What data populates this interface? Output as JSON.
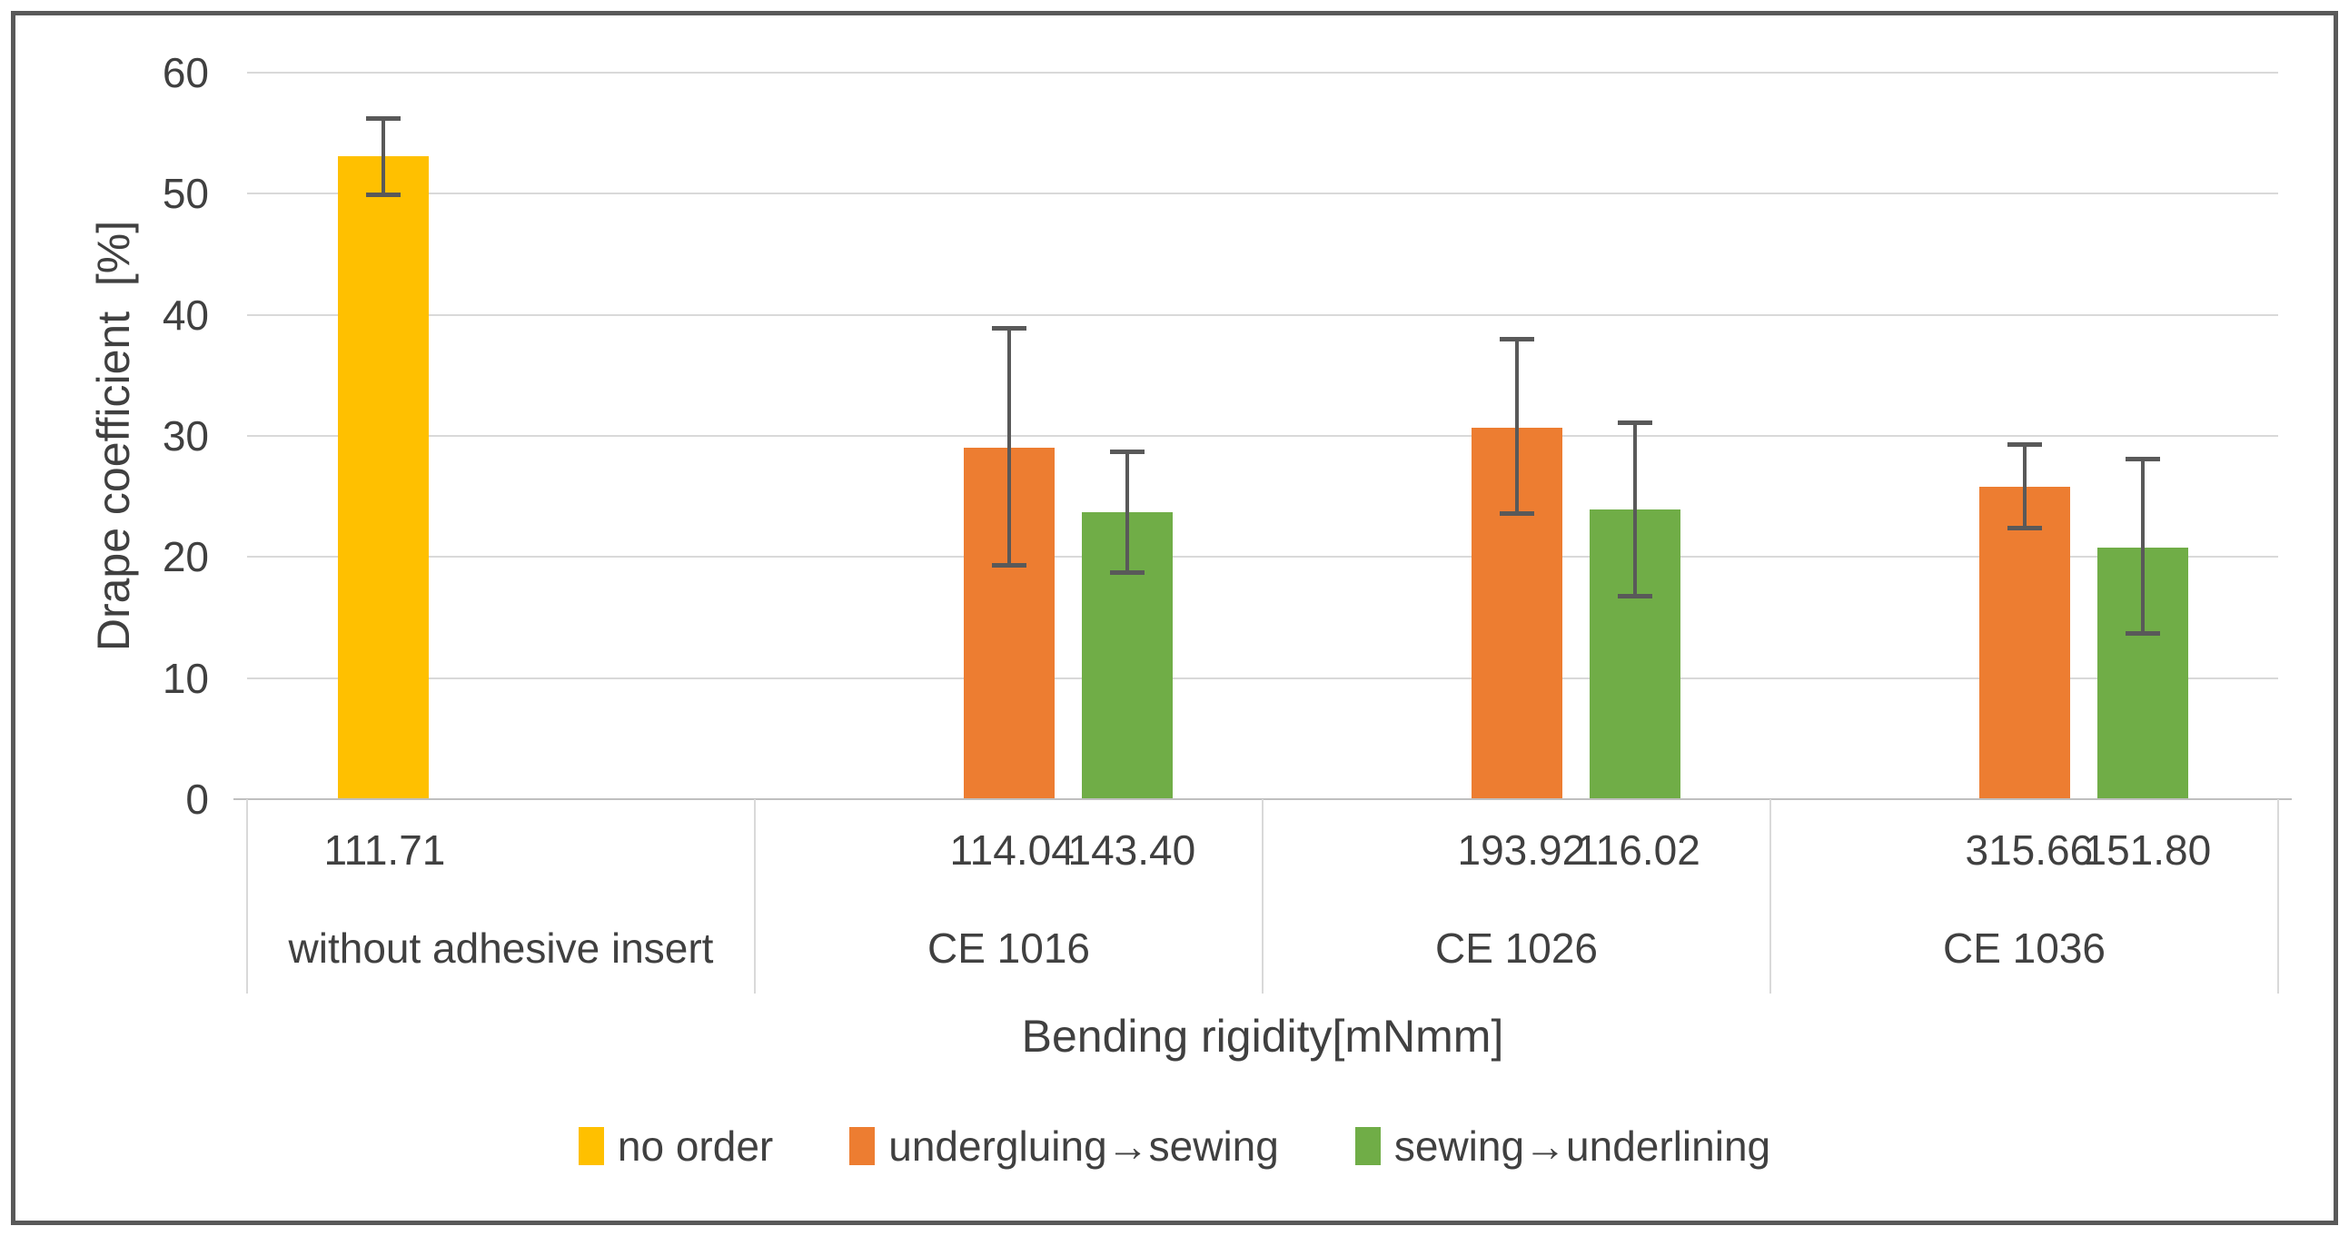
{
  "chart_data": {
    "type": "bar",
    "title": "",
    "xlabel": "Bending rigidity[mNmm]",
    "ylabel": "Drape coefficient  [%]",
    "ylim": [
      0,
      60
    ],
    "yticks": [
      60,
      50,
      40,
      30,
      20,
      10,
      0
    ],
    "grid": "horizontal",
    "legend_position": "bottom",
    "categories": [
      "without adhesive insert",
      "CE 1016",
      "CE 1026",
      "CE 1036"
    ],
    "series": [
      {
        "name": "no order",
        "color": "#FFC000",
        "values": [
          53.1,
          null,
          null,
          null
        ],
        "error_low": [
          49.7,
          null,
          null,
          null
        ],
        "error_high": [
          56.4,
          null,
          null,
          null
        ]
      },
      {
        "name": "undergluing→sewing",
        "color": "#ED7D31",
        "values": [
          null,
          29.0,
          30.7,
          25.8
        ],
        "error_low": [
          null,
          19.1,
          23.4,
          22.2
        ],
        "error_high": [
          null,
          39.1,
          38.2,
          29.5
        ]
      },
      {
        "name": "sewing→underlining",
        "color": "#70AD47",
        "values": [
          null,
          23.7,
          23.9,
          20.8
        ],
        "error_low": [
          null,
          18.5,
          16.6,
          13.5
        ],
        "error_high": [
          null,
          28.9,
          31.3,
          28.3
        ]
      }
    ],
    "bar_value_labels": [
      [
        "111.71",
        "",
        ""
      ],
      [
        "",
        "114.04",
        "143.40"
      ],
      [
        "",
        "193.92",
        "116.02"
      ],
      [
        "",
        "315.66",
        "151.80"
      ]
    ]
  },
  "style_colors": {
    "gridline": "#d9d9d9",
    "axis_line": "#bfbfbf",
    "error_bar": "#595959",
    "frame_border": "#595959",
    "text": "#404040"
  }
}
